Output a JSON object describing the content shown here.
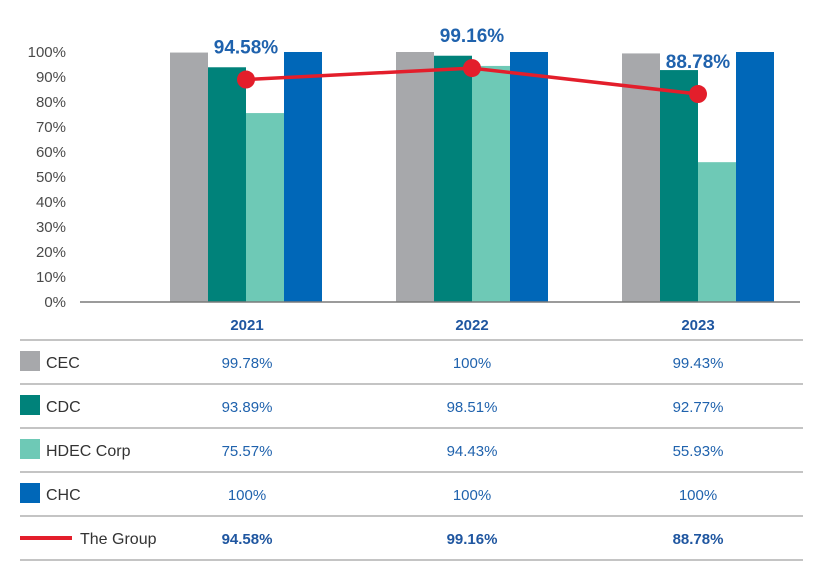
{
  "chart_data": {
    "type": "bar",
    "categories": [
      "2021",
      "2022",
      "2023"
    ],
    "series": [
      {
        "name": "CEC",
        "values": [
          99.78,
          100,
          99.43
        ],
        "labels": [
          "99.78%",
          "100%",
          "99.43%"
        ],
        "color": "#a7a8ab",
        "kind": "bar"
      },
      {
        "name": "CDC",
        "values": [
          93.89,
          98.51,
          92.77
        ],
        "labels": [
          "93.89%",
          "98.51%",
          "92.77%"
        ],
        "color": "#00827a",
        "kind": "bar"
      },
      {
        "name": "HDEC Corp",
        "values": [
          75.57,
          94.43,
          55.93
        ],
        "labels": [
          "75.57%",
          "94.43%",
          "55.93%"
        ],
        "color": "#6ec9b6",
        "kind": "bar"
      },
      {
        "name": "CHC",
        "values": [
          100,
          100,
          100
        ],
        "labels": [
          "100%",
          "100%",
          "100%"
        ],
        "color": "#0067b8",
        "kind": "bar"
      },
      {
        "name": "The Group",
        "values": [
          94.58,
          99.16,
          88.78
        ],
        "labels": [
          "94.58%",
          "99.16%",
          "88.78%"
        ],
        "color": "#e31e2b",
        "kind": "line"
      }
    ],
    "yticks": [
      "0%",
      "10%",
      "20%",
      "30%",
      "40%",
      "50%",
      "60%",
      "70%",
      "80%",
      "90%",
      "100%"
    ],
    "ylim": [
      0,
      100
    ],
    "grid": false,
    "legend": "table below chart"
  }
}
